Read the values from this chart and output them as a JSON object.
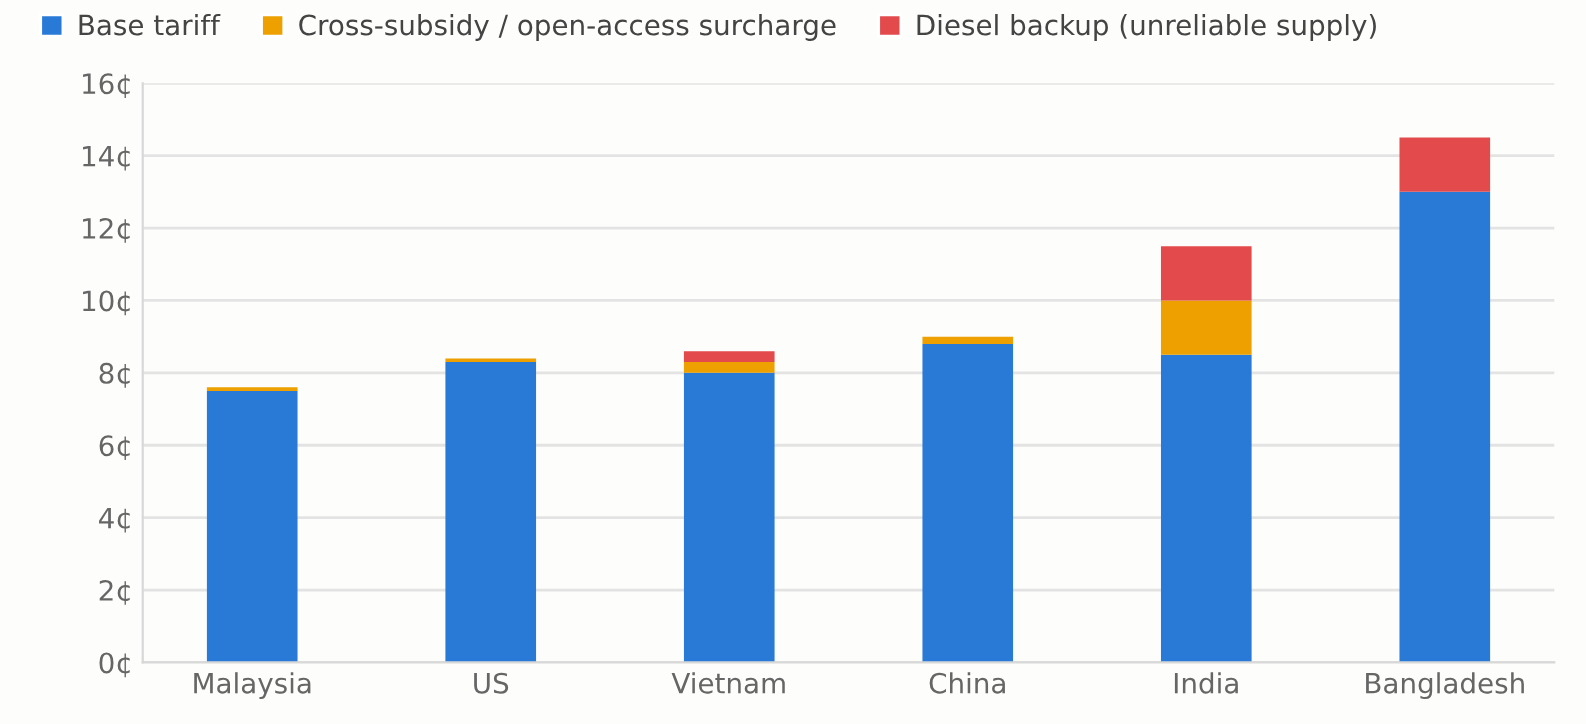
{
  "chart_data": {
    "type": "bar",
    "stacked": true,
    "categories": [
      "Malaysia",
      "US",
      "Vietnam",
      "China",
      "India",
      "Bangladesh"
    ],
    "series": [
      {
        "name": "Base tariff",
        "color": "#2979d6",
        "values": [
          7.5,
          8.3,
          8.0,
          8.8,
          8.5,
          13.0
        ]
      },
      {
        "name": "Cross-subsidy / open-access surcharge",
        "color": "#eda000",
        "values": [
          0.1,
          0.1,
          0.3,
          0.2,
          1.5,
          0
        ]
      },
      {
        "name": "Diesel backup (unreliable supply)",
        "color": "#e34a4c",
        "values": [
          0,
          0,
          0.3,
          0,
          1.5,
          1.5
        ]
      }
    ],
    "ylim": [
      0,
      16
    ],
    "yticks": [
      {
        "value": 0,
        "label": "0¢"
      },
      {
        "value": 2,
        "label": "2¢"
      },
      {
        "value": 4,
        "label": "4¢"
      },
      {
        "value": 6,
        "label": "6¢"
      },
      {
        "value": 8,
        "label": "8¢"
      },
      {
        "value": 10,
        "label": "10¢"
      },
      {
        "value": 12,
        "label": "12¢"
      },
      {
        "value": 14,
        "label": "14¢"
      },
      {
        "value": 16,
        "label": "16¢"
      }
    ],
    "grid": "y",
    "legend": "top left"
  }
}
